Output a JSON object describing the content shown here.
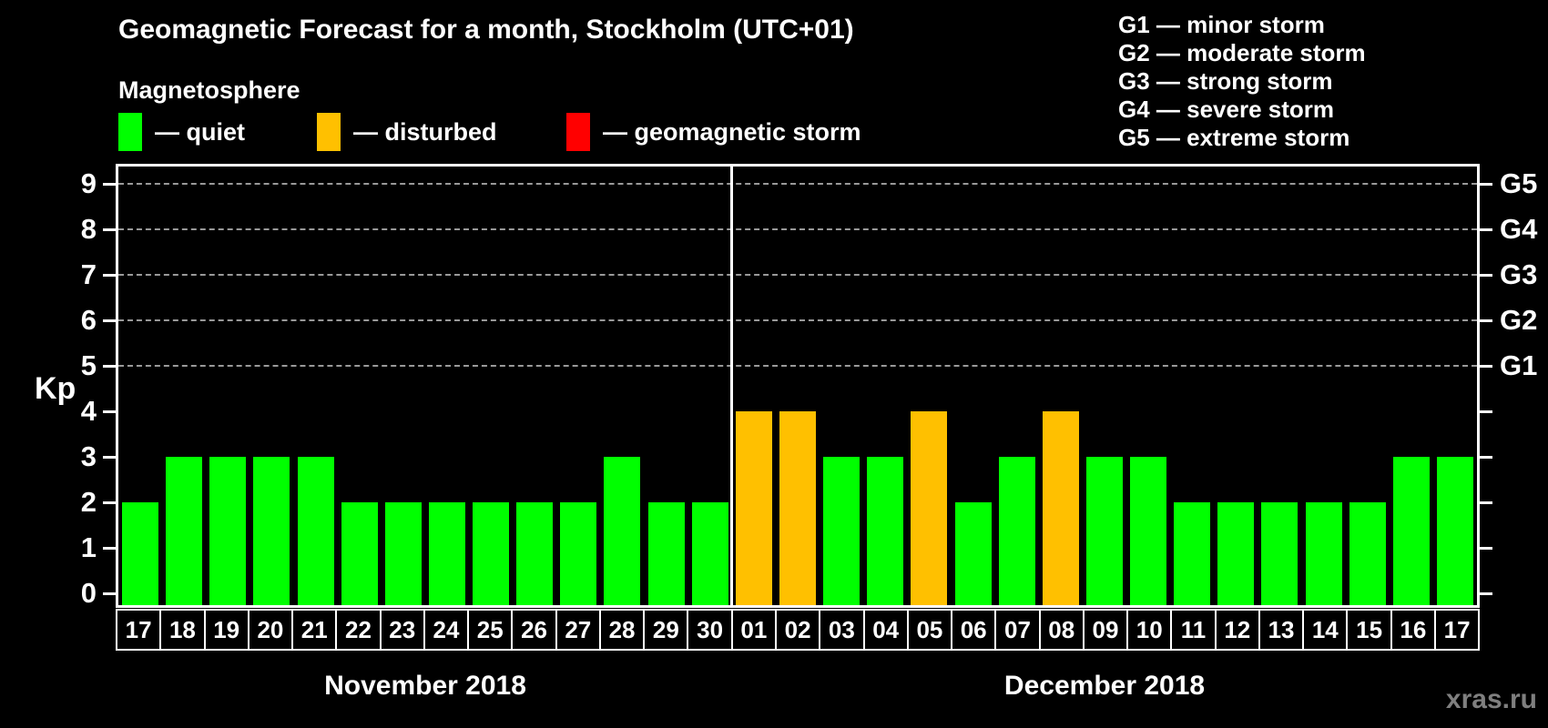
{
  "title": "Geomagnetic Forecast for a month, Stockholm (UTC+01)",
  "subtitle": "Magnetosphere",
  "legend": {
    "items": [
      {
        "label": "— quiet",
        "status": "quiet",
        "color": "#00ff00"
      },
      {
        "label": "— disturbed",
        "status": "disturbed",
        "color": "#ffc000"
      },
      {
        "label": "— geomagnetic storm",
        "status": "storm",
        "color": "#ff0000"
      }
    ]
  },
  "g_scale_legend": [
    "G1 — minor storm",
    "G2 — moderate storm",
    "G3 — strong storm",
    "G4 — severe storm",
    "G5 — extreme storm"
  ],
  "watermark": "xras.ru",
  "colors": {
    "quiet": "#00ff00",
    "disturbed": "#ffc000",
    "storm": "#ff0000",
    "background": "#000000",
    "text": "#ffffff",
    "grid": "#999999",
    "watermark": "#7f7f7f"
  },
  "chart_data": {
    "type": "bar",
    "title": "Geomagnetic Forecast for a month, Stockholm (UTC+01)",
    "ylabel": "Kp",
    "ylim": [
      0,
      9
    ],
    "kp_ticks": [
      "0",
      "1",
      "2",
      "3",
      "4",
      "5",
      "6",
      "7",
      "8",
      "9"
    ],
    "gridlines_at_kp": [
      5,
      6,
      7,
      8,
      9
    ],
    "grid": "dashed horizontal at storm levels",
    "right_axis_labels": [
      {
        "kp": 5,
        "label": "G1"
      },
      {
        "kp": 6,
        "label": "G2"
      },
      {
        "kp": 7,
        "label": "G3"
      },
      {
        "kp": 8,
        "label": "G4"
      },
      {
        "kp": 9,
        "label": "G5"
      }
    ],
    "months": [
      {
        "label": "November 2018",
        "days": [
          {
            "day": "17",
            "kp": 2,
            "status": "quiet"
          },
          {
            "day": "18",
            "kp": 3,
            "status": "quiet"
          },
          {
            "day": "19",
            "kp": 3,
            "status": "quiet"
          },
          {
            "day": "20",
            "kp": 3,
            "status": "quiet"
          },
          {
            "day": "21",
            "kp": 3,
            "status": "quiet"
          },
          {
            "day": "22",
            "kp": 2,
            "status": "quiet"
          },
          {
            "day": "23",
            "kp": 2,
            "status": "quiet"
          },
          {
            "day": "24",
            "kp": 2,
            "status": "quiet"
          },
          {
            "day": "25",
            "kp": 2,
            "status": "quiet"
          },
          {
            "day": "26",
            "kp": 2,
            "status": "quiet"
          },
          {
            "day": "27",
            "kp": 2,
            "status": "quiet"
          },
          {
            "day": "28",
            "kp": 3,
            "status": "quiet"
          },
          {
            "day": "29",
            "kp": 2,
            "status": "quiet"
          },
          {
            "day": "30",
            "kp": 2,
            "status": "quiet"
          }
        ]
      },
      {
        "label": "December 2018",
        "days": [
          {
            "day": "01",
            "kp": 4,
            "status": "disturbed"
          },
          {
            "day": "02",
            "kp": 4,
            "status": "disturbed"
          },
          {
            "day": "03",
            "kp": 3,
            "status": "quiet"
          },
          {
            "day": "04",
            "kp": 3,
            "status": "quiet"
          },
          {
            "day": "05",
            "kp": 4,
            "status": "disturbed"
          },
          {
            "day": "06",
            "kp": 2,
            "status": "quiet"
          },
          {
            "day": "07",
            "kp": 3,
            "status": "quiet"
          },
          {
            "day": "08",
            "kp": 4,
            "status": "disturbed"
          },
          {
            "day": "09",
            "kp": 3,
            "status": "quiet"
          },
          {
            "day": "10",
            "kp": 3,
            "status": "quiet"
          },
          {
            "day": "11",
            "kp": 2,
            "status": "quiet"
          },
          {
            "day": "12",
            "kp": 2,
            "status": "quiet"
          },
          {
            "day": "13",
            "kp": 2,
            "status": "quiet"
          },
          {
            "day": "14",
            "kp": 2,
            "status": "quiet"
          },
          {
            "day": "15",
            "kp": 2,
            "status": "quiet"
          },
          {
            "day": "16",
            "kp": 3,
            "status": "quiet"
          },
          {
            "day": "17",
            "kp": 3,
            "status": "quiet"
          }
        ]
      }
    ]
  }
}
